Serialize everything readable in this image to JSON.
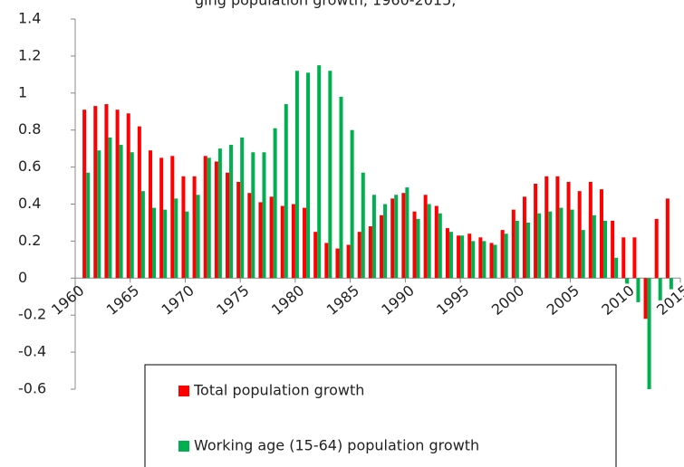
{
  "chart_data": {
    "type": "bar",
    "title": "ging population growth, 1960-2015,",
    "x": [
      1961,
      1962,
      1963,
      1964,
      1965,
      1966,
      1967,
      1968,
      1969,
      1970,
      1971,
      1972,
      1973,
      1974,
      1975,
      1976,
      1977,
      1978,
      1979,
      1980,
      1981,
      1982,
      1983,
      1984,
      1985,
      1986,
      1987,
      1988,
      1989,
      1990,
      1991,
      1992,
      1993,
      1994,
      1995,
      1996,
      1997,
      1998,
      1999,
      2000,
      2001,
      2002,
      2003,
      2004,
      2005,
      2006,
      2007,
      2008,
      2009,
      2010,
      2011,
      2012,
      2013,
      2014
    ],
    "series": [
      {
        "name": "Total population growth",
        "color": "#ff0000",
        "values": [
          0.91,
          0.93,
          0.94,
          0.91,
          0.89,
          0.82,
          0.69,
          0.65,
          0.66,
          0.55,
          0.55,
          0.66,
          0.63,
          0.57,
          0.52,
          0.46,
          0.41,
          0.44,
          0.39,
          0.4,
          0.38,
          0.25,
          0.19,
          0.16,
          0.18,
          0.25,
          0.28,
          0.34,
          0.43,
          0.46,
          0.36,
          0.45,
          0.39,
          0.27,
          0.23,
          0.24,
          0.22,
          0.19,
          0.26,
          0.37,
          0.44,
          0.51,
          0.55,
          0.55,
          0.52,
          0.47,
          0.52,
          0.48,
          0.31,
          0.22,
          0.22,
          -0.22,
          0.32,
          0.43
        ]
      },
      {
        "name": "Working age (15-64) population growth",
        "color": "#00b050",
        "values": [
          0.57,
          0.69,
          0.76,
          0.72,
          0.68,
          0.47,
          0.38,
          0.37,
          0.43,
          0.36,
          0.45,
          0.65,
          0.7,
          0.72,
          0.76,
          0.68,
          0.68,
          0.81,
          0.94,
          1.12,
          1.11,
          1.15,
          1.12,
          0.98,
          0.8,
          0.57,
          0.45,
          0.4,
          0.45,
          0.49,
          0.32,
          0.4,
          0.35,
          0.25,
          0.23,
          0.2,
          0.2,
          0.18,
          0.24,
          0.31,
          0.3,
          0.35,
          0.36,
          0.38,
          0.37,
          0.26,
          0.34,
          0.31,
          0.11,
          -0.03,
          -0.13,
          -0.6,
          -0.12,
          -0.06
        ]
      }
    ],
    "xlim": [
      1960,
      2015
    ],
    "xticks": [
      1960,
      1965,
      1970,
      1975,
      1980,
      1985,
      1990,
      1995,
      2000,
      2005,
      2010,
      2015
    ],
    "ylim": [
      -0.6,
      1.4
    ],
    "yticks": [
      1.4,
      1.2,
      1,
      0.8,
      0.6,
      0.4,
      0.2,
      0,
      -0.2,
      -0.4,
      -0.6
    ],
    "grid": false
  }
}
